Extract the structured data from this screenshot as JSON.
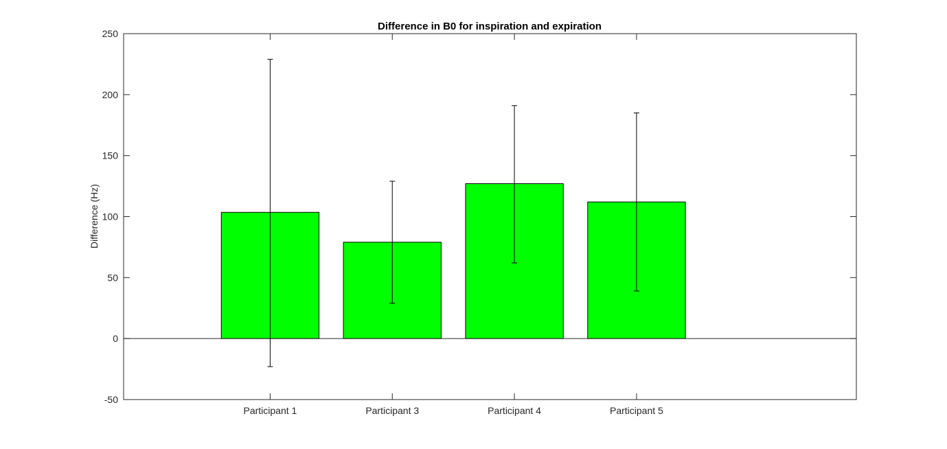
{
  "chart_data": {
    "type": "bar",
    "title": "Difference in B0 for inspiration and expiration",
    "xlabel": "",
    "ylabel": "Difference (Hz)",
    "categories": [
      "Participant 1",
      "Participant 3",
      "Participant 4",
      "Participant 5"
    ],
    "values": [
      103.5,
      79,
      127,
      112
    ],
    "error_lower": [
      -23,
      29,
      62,
      39
    ],
    "error_upper": [
      229,
      129,
      191,
      185
    ],
    "xlim": [
      0,
      6
    ],
    "x_positions": [
      1.2,
      2.2,
      3.2,
      4.2
    ],
    "ylim": [
      -50,
      250
    ],
    "yticks": [
      -50,
      0,
      50,
      100,
      150,
      200,
      250
    ],
    "grid": false,
    "bar_color": "#00ff00",
    "bar_edge_color": "#000000"
  }
}
